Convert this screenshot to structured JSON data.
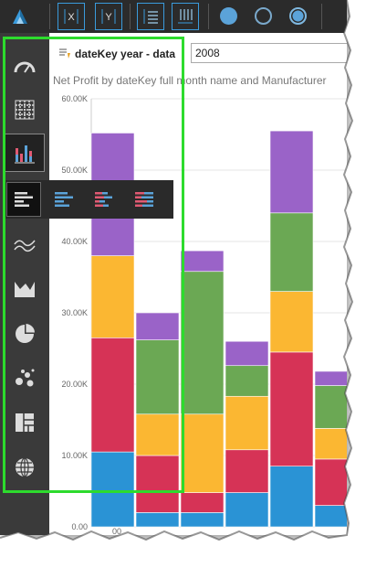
{
  "toolbar": {
    "logo": "logo-icon",
    "buttons": [
      {
        "name": "x-axis-button",
        "label": "X"
      },
      {
        "name": "y-axis-button",
        "label": "Y"
      },
      {
        "name": "rows-layout-button",
        "icon": "rows-icon"
      },
      {
        "name": "columns-layout-button",
        "icon": "columns-icon"
      }
    ],
    "circles": [
      {
        "name": "circle-filled",
        "color": "#5ba3d9"
      },
      {
        "name": "circle-outline",
        "color": "#7aa9cc"
      },
      {
        "name": "circle-ring",
        "color": "#7fb8e0"
      }
    ]
  },
  "sidebar": {
    "items": [
      "gauge-icon",
      "grid-icon",
      "bar-chart-icon",
      "line-chart-icon",
      "area-chart-icon",
      "pie-chart-icon",
      "scatter-icon",
      "treemap-icon",
      "globe-icon"
    ],
    "active": "bar-chart-icon"
  },
  "flyout": {
    "items": [
      "bar-horizontal-icon",
      "bar-horizontal-blue-icon",
      "bar-stacked-icon",
      "bar-stacked-100-icon"
    ]
  },
  "filter": {
    "label": "dateKey year - data",
    "value": "2008"
  },
  "chart_data": {
    "type": "bar",
    "title": "Net Profit by dateKey full month name and Manufacturer",
    "stacked": true,
    "yticks": [
      "0.00",
      "10.00K",
      "20.00K",
      "30.00K",
      "40.00K",
      "50.00K",
      "60.00K"
    ],
    "ylim": [
      0,
      60000
    ],
    "x_visible_label": "00",
    "grid": true,
    "colors": [
      "#2a93d5",
      "#d63356",
      "#fbb732",
      "#6ba854",
      "#9a63c8"
    ],
    "series": [
      {
        "name": "",
        "values": [
          10500,
          2000,
          2000,
          4800,
          8500,
          3000
        ]
      },
      {
        "name": "",
        "values": [
          16000,
          8000,
          2800,
          6000,
          16000,
          6500
        ]
      },
      {
        "name": "",
        "values": [
          11500,
          5800,
          11000,
          7500,
          8500,
          4300
        ]
      },
      {
        "name": "",
        "values": [
          0,
          10400,
          20000,
          4300,
          11000,
          6000
        ]
      },
      {
        "name": "",
        "values": [
          17200,
          3800,
          2900,
          3400,
          11500,
          2000
        ]
      }
    ],
    "extra_segment": {
      "bar": 0,
      "value": 0
    }
  }
}
